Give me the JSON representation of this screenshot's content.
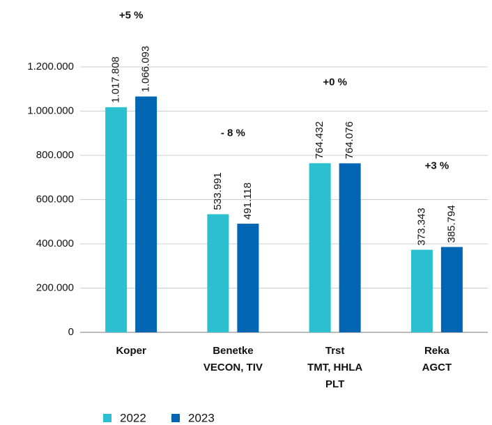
{
  "chart_data": {
    "type": "bar",
    "categories": [
      [
        "Koper"
      ],
      [
        "Benetke",
        "VECON, TIV"
      ],
      [
        "Trst",
        "TMT, HHLA",
        "PLT"
      ],
      [
        "Reka",
        "AGCT"
      ]
    ],
    "series": [
      {
        "name": "2022",
        "color": "#2bbfcf",
        "values": [
          1017808,
          533991,
          764432,
          373343
        ],
        "value_labels": [
          "1.017.808",
          "533.991",
          "764.432",
          "373.343"
        ]
      },
      {
        "name": "2023",
        "color": "#0066b3",
        "values": [
          1066093,
          491118,
          764076,
          385794
        ],
        "value_labels": [
          "1.066.093",
          "491.118",
          "764.076",
          "385.794"
        ]
      }
    ],
    "annotations": [
      "+5 %",
      "- 8 %",
      "+0 %",
      "+3 %"
    ],
    "ylim": [
      0,
      1200000
    ],
    "yticks": [
      {
        "value": 0,
        "label": "0"
      },
      {
        "value": 200000,
        "label": "200.000"
      },
      {
        "value": 400000,
        "label": "400.000"
      },
      {
        "value": 600000,
        "label": "600.000"
      },
      {
        "value": 800000,
        "label": "800.000"
      },
      {
        "value": 1000000,
        "label": "1.000.000"
      },
      {
        "value": 1200000,
        "label": "1.200.000"
      }
    ],
    "grid": true
  }
}
